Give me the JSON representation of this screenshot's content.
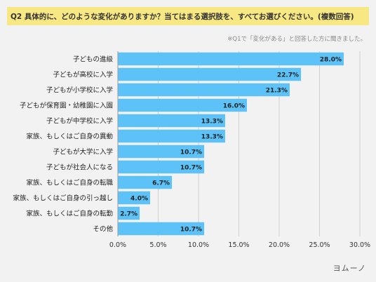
{
  "header": {
    "title": "Q2 具体的に、どのような変化がありますか？当てはまる選択肢を、すべてお選びください。(複数回答)",
    "note": "※Q1で「変化がある」と回答した方に聞きました。"
  },
  "brand": {
    "logo_text": "ヨムーノ"
  },
  "colors": {
    "bar": "#5cc2f7",
    "title_bg": "#f7e884",
    "background": "#f2f2f2",
    "grid": "#d0d0d0"
  },
  "chart_data": {
    "type": "bar",
    "orientation": "horizontal",
    "categories": [
      "子どもの進級",
      "子どもが高校に入学",
      "子どもが小学校に入学",
      "子どもが保育園・幼稚園に入園",
      "子どもが中学校に入学",
      "家族、もしくはご自身の異動",
      "子どもが大学に入学",
      "子どもが社会人になる",
      "家族、もしくはご自身の転職",
      "家族、もしくはご自身の引っ越し",
      "家族、もしくはご自身の転勤",
      "その他"
    ],
    "values": [
      28.0,
      22.7,
      21.3,
      16.0,
      13.3,
      13.3,
      10.7,
      10.7,
      6.7,
      4.0,
      2.7,
      10.7
    ],
    "value_labels": [
      "28.0%",
      "22.7%",
      "21.3%",
      "16.0%",
      "13.3%",
      "13.3%",
      "10.7%",
      "10.7%",
      "6.7%",
      "4.0%",
      "2.7%",
      "10.7%"
    ],
    "x_ticks": [
      "0.0%",
      "5.0%",
      "10.0%",
      "15.0%",
      "20.0%",
      "25.0%",
      "30.0%"
    ],
    "xlim": [
      0,
      30
    ],
    "grid": true
  }
}
